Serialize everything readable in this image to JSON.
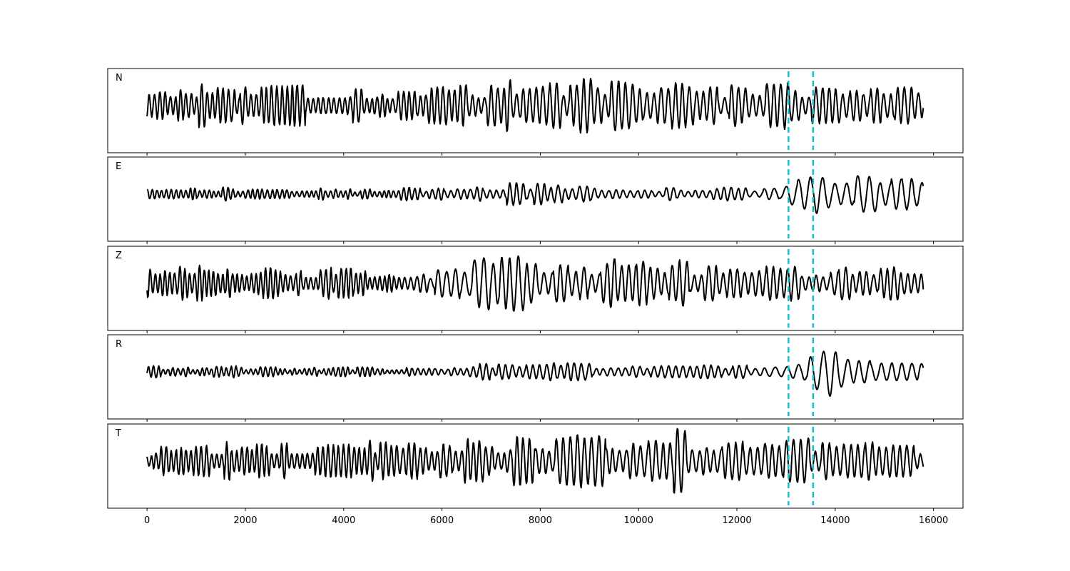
{
  "chart_data": {
    "type": "line",
    "title": "",
    "xlabel": "",
    "ylabel": "",
    "xlim": [
      -800,
      16600
    ],
    "x_ticks": [
      0,
      2000,
      4000,
      6000,
      8000,
      10000,
      12000,
      14000,
      16000
    ],
    "x_tick_labels": [
      "0",
      "2000",
      "4000",
      "6000",
      "8000",
      "10000",
      "12000",
      "14000",
      "16000"
    ],
    "n_samples": 15800,
    "vertical_markers": [
      13050,
      13550
    ],
    "colors": {
      "trace": "#000000",
      "marker": "#17becf"
    },
    "grid": false,
    "panels": [
      {
        "label": "N",
        "envelope": [
          [
            0,
            0.45
          ],
          [
            1000,
            0.5
          ],
          [
            2000,
            0.45
          ],
          [
            4000,
            0.45
          ],
          [
            5000,
            0.35
          ],
          [
            6000,
            0.45
          ],
          [
            7000,
            0.55
          ],
          [
            8000,
            0.6
          ],
          [
            10000,
            0.6
          ],
          [
            11000,
            0.5
          ],
          [
            12000,
            0.55
          ],
          [
            13000,
            0.55
          ],
          [
            14000,
            0.45
          ],
          [
            15000,
            0.5
          ],
          [
            15800,
            0.45
          ]
        ],
        "period": [
          [
            0,
            110
          ],
          [
            5000,
            110
          ],
          [
            6000,
            120
          ],
          [
            8000,
            140
          ],
          [
            10000,
            150
          ],
          [
            12000,
            150
          ],
          [
            15800,
            140
          ]
        ]
      },
      {
        "label": "E",
        "envelope": [
          [
            0,
            0.15
          ],
          [
            2000,
            0.15
          ],
          [
            5000,
            0.12
          ],
          [
            6000,
            0.2
          ],
          [
            7000,
            0.25
          ],
          [
            9000,
            0.25
          ],
          [
            10000,
            0.15
          ],
          [
            12000,
            0.15
          ],
          [
            12900,
            0.2
          ],
          [
            13100,
            0.5
          ],
          [
            13400,
            0.55
          ],
          [
            13700,
            0.75
          ],
          [
            14000,
            0.45
          ],
          [
            15000,
            0.4
          ],
          [
            15800,
            0.35
          ]
        ],
        "period": [
          [
            0,
            100
          ],
          [
            5000,
            100
          ],
          [
            6000,
            130
          ],
          [
            9000,
            150
          ],
          [
            12000,
            150
          ],
          [
            13000,
            250
          ],
          [
            14000,
            250
          ],
          [
            15000,
            220
          ],
          [
            15800,
            200
          ]
        ]
      },
      {
        "label": "Z",
        "envelope": [
          [
            0,
            0.4
          ],
          [
            2000,
            0.4
          ],
          [
            4000,
            0.35
          ],
          [
            5500,
            0.3
          ],
          [
            6000,
            0.3
          ],
          [
            6600,
            0.55
          ],
          [
            7200,
            0.7
          ],
          [
            8000,
            0.65
          ],
          [
            9000,
            0.55
          ],
          [
            10000,
            0.7
          ],
          [
            11000,
            0.5
          ],
          [
            12000,
            0.55
          ],
          [
            12800,
            0.5
          ],
          [
            13500,
            0.35
          ],
          [
            14000,
            0.4
          ],
          [
            15800,
            0.35
          ]
        ],
        "period": [
          [
            0,
            100
          ],
          [
            5000,
            100
          ],
          [
            6500,
            200
          ],
          [
            8000,
            170
          ],
          [
            10000,
            150
          ],
          [
            12000,
            150
          ],
          [
            14000,
            150
          ],
          [
            15800,
            140
          ]
        ]
      },
      {
        "label": "R",
        "envelope": [
          [
            0,
            0.13
          ],
          [
            2000,
            0.13
          ],
          [
            5000,
            0.1
          ],
          [
            6000,
            0.12
          ],
          [
            6800,
            0.22
          ],
          [
            7500,
            0.2
          ],
          [
            9000,
            0.2
          ],
          [
            10000,
            0.15
          ],
          [
            12000,
            0.15
          ],
          [
            12900,
            0.18
          ],
          [
            13100,
            0.3
          ],
          [
            13500,
            0.45
          ],
          [
            13900,
            0.7
          ],
          [
            14200,
            0.35
          ],
          [
            15000,
            0.35
          ],
          [
            15800,
            0.3
          ]
        ],
        "period": [
          [
            0,
            100
          ],
          [
            5000,
            100
          ],
          [
            6000,
            130
          ],
          [
            9000,
            150
          ],
          [
            12000,
            150
          ],
          [
            13000,
            250
          ],
          [
            14000,
            250
          ],
          [
            15800,
            200
          ]
        ]
      },
      {
        "label": "T",
        "envelope": [
          [
            0,
            0.35
          ],
          [
            2000,
            0.45
          ],
          [
            4000,
            0.45
          ],
          [
            6000,
            0.5
          ],
          [
            8000,
            0.55
          ],
          [
            10000,
            0.65
          ],
          [
            10800,
            0.75
          ],
          [
            11500,
            0.5
          ],
          [
            12400,
            0.65
          ],
          [
            13000,
            0.5
          ],
          [
            13500,
            0.6
          ],
          [
            14500,
            0.5
          ],
          [
            15800,
            0.4
          ]
        ],
        "period": [
          [
            0,
            100
          ],
          [
            4000,
            110
          ],
          [
            6000,
            120
          ],
          [
            8000,
            140
          ],
          [
            10000,
            150
          ],
          [
            12000,
            150
          ],
          [
            14000,
            150
          ],
          [
            15800,
            140
          ]
        ]
      }
    ]
  }
}
